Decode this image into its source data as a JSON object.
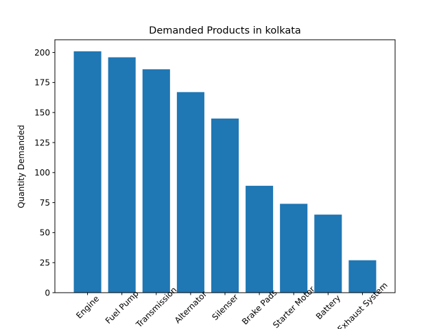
{
  "chart_data": {
    "type": "bar",
    "title": "Demanded Products in kolkata",
    "xlabel": "",
    "ylabel": "Quantity Demanded",
    "categories": [
      "Engine",
      "Fuel Pump",
      "Transmission",
      "Alternator",
      "Silenser",
      "Brake Pads",
      "Starter Motor",
      "Battery",
      "Exhaust System"
    ],
    "values": [
      201,
      196,
      186,
      167,
      145,
      89,
      74,
      65,
      27
    ],
    "ylim": [
      0,
      210.6
    ],
    "yticks": [
      0,
      25,
      50,
      75,
      100,
      125,
      150,
      175,
      200
    ],
    "bar_color": "#1f77b4",
    "grid": false,
    "legend": "none"
  }
}
